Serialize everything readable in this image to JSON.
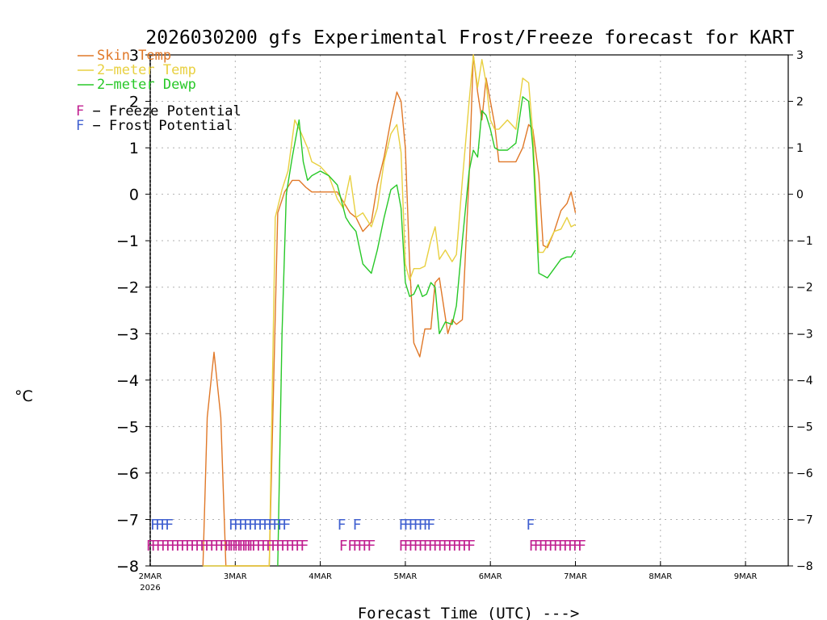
{
  "chart_data": {
    "type": "line",
    "title": "2026030200 gfs Experimental Frost/Freeze forecast for KART",
    "xlabel": "Forecast Time (UTC) --->",
    "ylabel": "°C",
    "ylim": [
      -8,
      3
    ],
    "xlim": [
      0,
      7.5
    ],
    "yticks": [
      3,
      2,
      1,
      0,
      -1,
      -2,
      -3,
      -4,
      -5,
      -6,
      -7,
      -8
    ],
    "ytick_labels": [
      "3",
      "2",
      "1",
      "0",
      "−1",
      "−2",
      "−3",
      "−4",
      "−5",
      "−6",
      "−7",
      "−8"
    ],
    "xticks": [
      0,
      1,
      2,
      3,
      4,
      5,
      6,
      7
    ],
    "xtick_labels": [
      "2MAR",
      "3MAR",
      "4MAR",
      "5MAR",
      "6MAR",
      "7MAR",
      "8MAR",
      "9MAR"
    ],
    "year_label": "2026",
    "grid": true,
    "series": [
      {
        "name": "Skin Temp",
        "legend_label": "Skin Temp",
        "color": "#e07828",
        "x": [
          0.62,
          0.67,
          0.75,
          0.83,
          0.89,
          1.0,
          1.25,
          1.4,
          1.5,
          1.58,
          1.67,
          1.75,
          1.83,
          1.9,
          2.0,
          2.1,
          2.2,
          2.3,
          2.35,
          2.42,
          2.5,
          2.6,
          2.67,
          2.75,
          2.83,
          2.9,
          2.95,
          3.0,
          3.05,
          3.1,
          3.17,
          3.23,
          3.3,
          3.35,
          3.4,
          3.5,
          3.55,
          3.6,
          3.67,
          3.75,
          3.8,
          3.85,
          3.9,
          3.95,
          4.0,
          4.05,
          4.1,
          4.2,
          4.3,
          4.38,
          4.45,
          4.5,
          4.57,
          4.62,
          4.67,
          4.75,
          4.83,
          4.9,
          4.95,
          5.0
        ],
        "y": [
          -8.0,
          -4.8,
          -3.4,
          -4.8,
          -8.0,
          -8.0,
          -8.0,
          -8.0,
          -0.4,
          0.05,
          0.3,
          0.3,
          0.15,
          0.05,
          0.05,
          0.05,
          0.05,
          -0.25,
          -0.4,
          -0.5,
          -0.8,
          -0.6,
          0.2,
          0.8,
          1.6,
          2.2,
          2.0,
          1.0,
          -1.5,
          -3.2,
          -3.5,
          -2.9,
          -2.9,
          -1.9,
          -1.8,
          -3.0,
          -2.7,
          -2.8,
          -2.7,
          0.4,
          3.0,
          2.2,
          1.6,
          2.5,
          2.0,
          1.5,
          0.7,
          0.7,
          0.7,
          1.0,
          1.5,
          1.4,
          0.4,
          -1.1,
          -1.15,
          -0.8,
          -0.35,
          -0.2,
          0.05,
          -0.4
        ]
      },
      {
        "name": "2-meter Temp",
        "legend_label": "2−meter Temp",
        "color": "#e8d040",
        "x": [
          0.62,
          0.75,
          0.89,
          1.0,
          1.25,
          1.4,
          1.47,
          1.55,
          1.62,
          1.7,
          1.78,
          1.85,
          1.9,
          2.0,
          2.1,
          2.2,
          2.27,
          2.35,
          2.42,
          2.5,
          2.6,
          2.67,
          2.75,
          2.83,
          2.9,
          2.95,
          3.0,
          3.05,
          3.1,
          3.17,
          3.23,
          3.3,
          3.35,
          3.4,
          3.47,
          3.55,
          3.6,
          3.67,
          3.75,
          3.8,
          3.85,
          3.9,
          3.95,
          4.0,
          4.05,
          4.1,
          4.2,
          4.3,
          4.38,
          4.45,
          4.5,
          4.57,
          4.62,
          4.67,
          4.75,
          4.83,
          4.9,
          4.95,
          5.0
        ],
        "y": [
          -8.0,
          -8.0,
          -8.0,
          -8.0,
          -8.0,
          -8.0,
          -0.5,
          0.1,
          0.5,
          1.6,
          1.3,
          1.0,
          0.7,
          0.6,
          0.4,
          -0.1,
          -0.3,
          0.4,
          -0.5,
          -0.4,
          -0.7,
          -0.3,
          0.7,
          1.3,
          1.5,
          0.9,
          -1.5,
          -1.85,
          -1.6,
          -1.6,
          -1.55,
          -1.0,
          -0.7,
          -1.4,
          -1.2,
          -1.45,
          -1.3,
          0.3,
          2.0,
          3.0,
          2.3,
          2.9,
          2.4,
          1.6,
          1.4,
          1.4,
          1.6,
          1.4,
          2.5,
          2.4,
          1.3,
          -1.25,
          -1.25,
          -1.1,
          -0.8,
          -0.75,
          -0.5,
          -0.7,
          -0.65
        ]
      },
      {
        "name": "2-meter Dewp",
        "legend_label": "2−meter Dewp",
        "color": "#28c828",
        "x": [
          1.5,
          1.55,
          1.6,
          1.67,
          1.75,
          1.8,
          1.85,
          1.9,
          2.0,
          2.1,
          2.2,
          2.3,
          2.35,
          2.42,
          2.5,
          2.6,
          2.67,
          2.75,
          2.83,
          2.9,
          2.95,
          3.0,
          3.05,
          3.1,
          3.15,
          3.2,
          3.25,
          3.3,
          3.35,
          3.4,
          3.47,
          3.55,
          3.6,
          3.67,
          3.75,
          3.8,
          3.85,
          3.9,
          3.95,
          4.0,
          4.05,
          4.1,
          4.2,
          4.3,
          4.38,
          4.45,
          4.5,
          4.57,
          4.62,
          4.67,
          4.75,
          4.83,
          4.9,
          4.95,
          5.0
        ],
        "y": [
          -8.0,
          -3.0,
          0.0,
          0.8,
          1.6,
          0.7,
          0.3,
          0.4,
          0.5,
          0.4,
          0.2,
          -0.5,
          -0.65,
          -0.8,
          -1.5,
          -1.7,
          -1.2,
          -0.5,
          0.1,
          0.2,
          -0.3,
          -1.9,
          -2.2,
          -2.15,
          -1.95,
          -2.2,
          -2.15,
          -1.9,
          -2.0,
          -3.0,
          -2.75,
          -2.8,
          -2.4,
          -1.0,
          0.5,
          0.95,
          0.8,
          1.8,
          1.7,
          1.4,
          1.0,
          0.95,
          0.95,
          1.1,
          2.1,
          2.0,
          1.0,
          -1.7,
          -1.75,
          -1.8,
          -1.6,
          -1.4,
          -1.35,
          -1.35,
          -1.2
        ]
      }
    ],
    "frost_potential": {
      "name": "Frost Potential",
      "color": "#4060d0",
      "y_level": -7.1,
      "runs": [
        {
          "x_start": 0.0,
          "count": 4,
          "text": "FFFF"
        },
        {
          "x_start": 0.92,
          "count": 12,
          "text": "FFFFFFFFFFFF"
        },
        {
          "x_start": 2.2,
          "count": 1,
          "text": "F"
        },
        {
          "x_start": 2.38,
          "count": 1,
          "text": "F"
        },
        {
          "x_start": 2.92,
          "count": 6,
          "text": "FFFFFF"
        },
        {
          "x_start": 3.25,
          "count": 1,
          "text": "F"
        },
        {
          "x_start": 4.42,
          "count": 1,
          "text": "F"
        }
      ]
    },
    "freeze_potential": {
      "name": "Freeze Potential",
      "color": "#c02090",
      "y_level": -7.55,
      "runs": [
        {
          "x_start": -0.05,
          "count": 22,
          "text": "FFFFFFFFFFFFFFFFFFFFFF"
        },
        {
          "x_start": 0.9,
          "count": 16,
          "text": "FFFFFFFFFFFFFFFF"
        },
        {
          "x_start": 2.22,
          "count": 1,
          "text": "F"
        },
        {
          "x_start": 2.32,
          "count": 5,
          "text": "FFFFF"
        },
        {
          "x_start": 2.92,
          "count": 15,
          "text": "FFFFFFFFFFFFFFF"
        },
        {
          "x_start": 4.45,
          "count": 11,
          "text": "FFFFFFFFFFF"
        }
      ]
    },
    "legend": {
      "placement": "top-left",
      "items": [
        {
          "label": "Skin Temp",
          "color": "#e07828"
        },
        {
          "label": "2−meter Temp",
          "color": "#e8d040"
        },
        {
          "label": "2−meter Dewp",
          "color": "#28c828"
        }
      ],
      "flags": [
        {
          "letter": "F",
          "label": " − Freeze Potential",
          "color": "#c02090"
        },
        {
          "letter": "F",
          "label": " − Frost Potential",
          "color": "#4060d0"
        }
      ]
    }
  }
}
